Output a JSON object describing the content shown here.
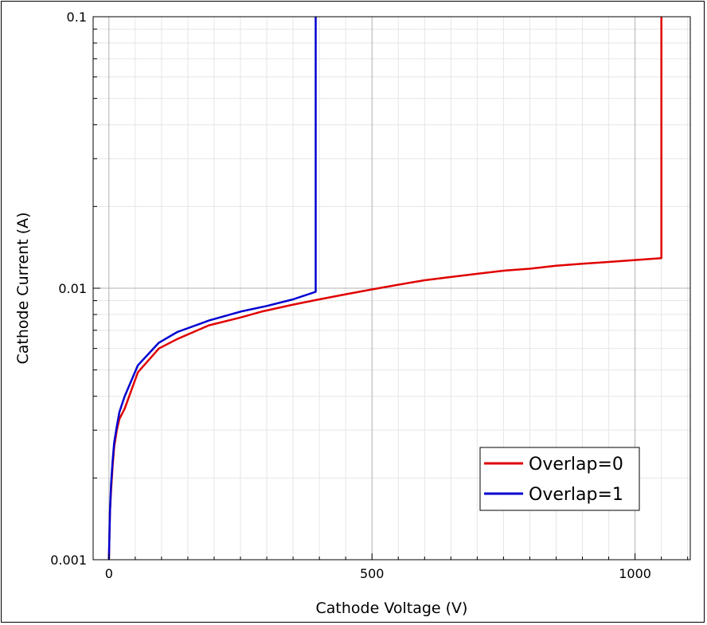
{
  "chart_data": {
    "type": "line",
    "xlabel": "Cathode Voltage (V)",
    "ylabel": "Cathode Current (A)",
    "xlim": [
      -30,
      1105
    ],
    "ylim": [
      0.001,
      0.1
    ],
    "yscale": "log",
    "x_ticks": [
      0,
      500,
      1000
    ],
    "x_tick_labels": [
      "0",
      "500",
      "1000"
    ],
    "y_ticks": [
      0.001,
      0.01,
      0.1
    ],
    "y_tick_labels": [
      "0.001",
      "0.01",
      "0.1"
    ],
    "grid": true,
    "legend": "bottom-right",
    "series": [
      {
        "name": "Overlap=0",
        "color": "#e00000",
        "x": [
          0,
          1,
          2,
          4,
          7,
          10,
          15,
          20,
          30,
          55,
          95,
          130,
          190,
          250,
          290,
          350,
          400,
          450,
          500,
          550,
          600,
          650,
          700,
          750,
          800,
          850,
          900,
          950,
          1000,
          1050,
          1050
        ],
        "y": [
          0.001,
          0.00125,
          0.0015,
          0.0018,
          0.0022,
          0.0026,
          0.003,
          0.0033,
          0.0036,
          0.0049,
          0.006,
          0.0065,
          0.0073,
          0.0078,
          0.0082,
          0.0087,
          0.0091,
          0.0095,
          0.0099,
          0.0103,
          0.0107,
          0.011,
          0.0113,
          0.0116,
          0.0118,
          0.0121,
          0.0123,
          0.0125,
          0.0127,
          0.0129,
          0.1
        ]
      },
      {
        "name": "Overlap=1",
        "color": "#0000d0",
        "x": [
          0,
          1,
          2,
          4,
          7,
          10,
          15,
          20,
          30,
          55,
          95,
          130,
          190,
          250,
          300,
          350,
          393,
          393
        ],
        "y": [
          0.001,
          0.00125,
          0.0015,
          0.0019,
          0.0023,
          0.0027,
          0.0031,
          0.0035,
          0.004,
          0.0052,
          0.0063,
          0.0069,
          0.0076,
          0.0082,
          0.0086,
          0.0091,
          0.0097,
          0.1
        ]
      }
    ]
  }
}
